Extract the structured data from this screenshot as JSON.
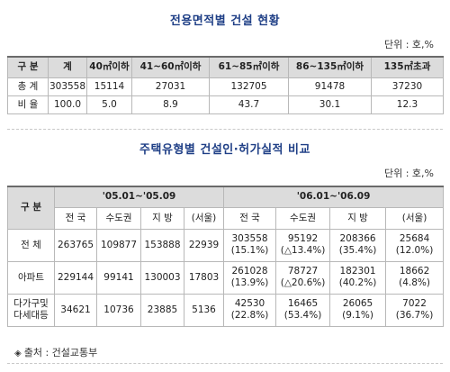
{
  "table1": {
    "title": "전용면적별 건설 현황",
    "unit": "단위 : 호,%",
    "headers": [
      "구 분",
      "계",
      "40㎡이하",
      "41~60㎡이하",
      "61~85㎡이하",
      "86~135㎡이하",
      "135㎡초과"
    ],
    "rows": [
      {
        "label": "총 계",
        "values": [
          "303558",
          "15114",
          "27031",
          "132705",
          "91478",
          "37230"
        ]
      },
      {
        "label": "비 율",
        "values": [
          "100.0",
          "5.0",
          "8.9",
          "43.7",
          "30.1",
          "12.3"
        ]
      }
    ]
  },
  "table2": {
    "title": "주택유형별 건설인·허가실적 비교",
    "unit": "단위 : 호,%",
    "category_header": "구 분",
    "period1": "'05.01~'05.09",
    "period2": "'06.01~'06.09",
    "sub_headers": [
      "전 국",
      "수도권",
      "지 방",
      "(서울)",
      "전 국",
      "수도권",
      "지 방",
      "(서울)"
    ],
    "rows": [
      {
        "label": "전 체",
        "p1": [
          "263765",
          "109877",
          "153888",
          "22939"
        ],
        "p2": [
          {
            "value": "303558",
            "pct": "(15.1%)"
          },
          {
            "value": "95192",
            "pct": "(△13.4%)"
          },
          {
            "value": "208366",
            "pct": "(35.4%)"
          },
          {
            "value": "25684",
            "pct": "(12.0%)"
          }
        ]
      },
      {
        "label": "아파트",
        "p1": [
          "229144",
          "99141",
          "130003",
          "17803"
        ],
        "p2": [
          {
            "value": "261028",
            "pct": "(13.9%)"
          },
          {
            "value": "78727",
            "pct": "(△20.6%)"
          },
          {
            "value": "182301",
            "pct": "(40.2%)"
          },
          {
            "value": "18662",
            "pct": "(4.8%)"
          }
        ]
      },
      {
        "label_line1": "다가구및",
        "label_line2": "다세대등",
        "p1": [
          "34621",
          "10736",
          "23885",
          "5136"
        ],
        "p2": [
          {
            "value": "42530",
            "pct": "(22.8%)"
          },
          {
            "value": "16465",
            "pct": "(53.4%)"
          },
          {
            "value": "26065",
            "pct": "(9.1%)"
          },
          {
            "value": "7022",
            "pct": "(36.7%)"
          }
        ]
      }
    ]
  },
  "source": {
    "bullet": "◈",
    "text": "출처 : 건설교통부"
  }
}
